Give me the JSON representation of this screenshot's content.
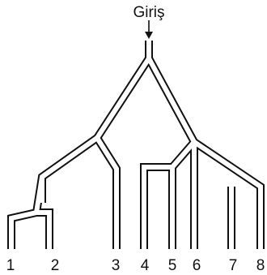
{
  "entry": {
    "label": "Giriş"
  },
  "exits": [
    "1",
    "2",
    "3",
    "4",
    "5",
    "6",
    "7",
    "8"
  ]
}
